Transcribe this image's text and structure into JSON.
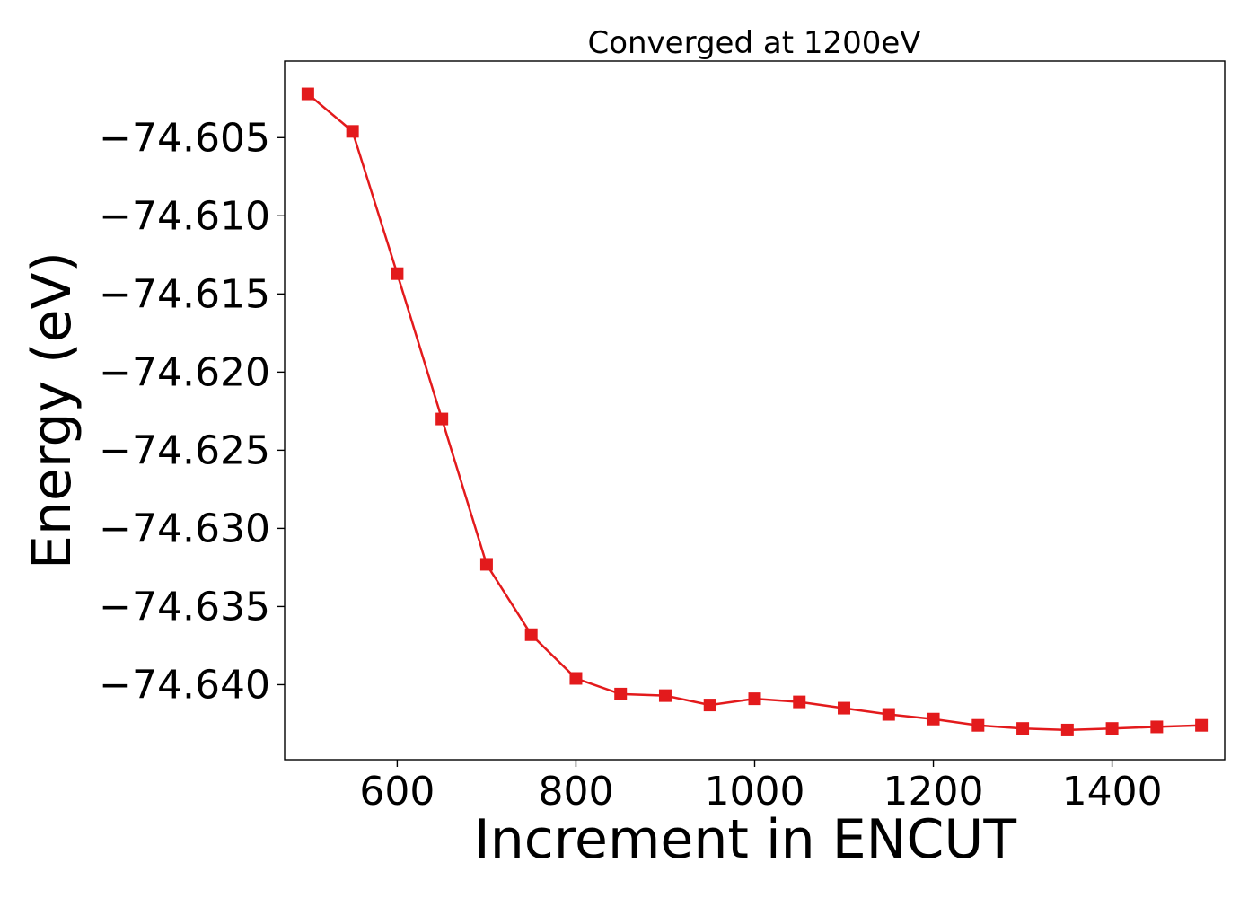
{
  "chart_data": {
    "type": "line",
    "title": "Converged at 1200eV",
    "xlabel": "Increment in ENCUT",
    "ylabel": "Energy (eV)",
    "xlim": [
      474,
      1526
    ],
    "ylim": [
      -74.6448,
      -74.6001
    ],
    "xticks": [
      600,
      800,
      1000,
      1200,
      1400
    ],
    "xtick_labels": [
      "600",
      "800",
      "1000",
      "1200",
      "1400"
    ],
    "yticks": [
      -74.605,
      -74.61,
      -74.615,
      -74.62,
      -74.625,
      -74.63,
      -74.635,
      -74.64
    ],
    "ytick_labels": [
      "−74.605",
      "−74.610",
      "−74.615",
      "−74.620",
      "−74.625",
      "−74.630",
      "−74.635",
      "−74.640"
    ],
    "grid": false,
    "series": [
      {
        "color": "#e31a1c",
        "marker": "square",
        "x": [
          500,
          550,
          600,
          650,
          700,
          750,
          800,
          850,
          900,
          950,
          1000,
          1050,
          1100,
          1150,
          1200,
          1250,
          1300,
          1350,
          1400,
          1450,
          1500
        ],
        "y": [
          -74.6022,
          -74.6046,
          -74.6137,
          -74.623,
          -74.6323,
          -74.6368,
          -74.6396,
          -74.6406,
          -74.6407,
          -74.6413,
          -74.6409,
          -74.6411,
          -74.6415,
          -74.6419,
          -74.6422,
          -74.6426,
          -74.6428,
          -74.6429,
          -74.6428,
          -74.6427,
          -74.6426
        ]
      }
    ]
  }
}
